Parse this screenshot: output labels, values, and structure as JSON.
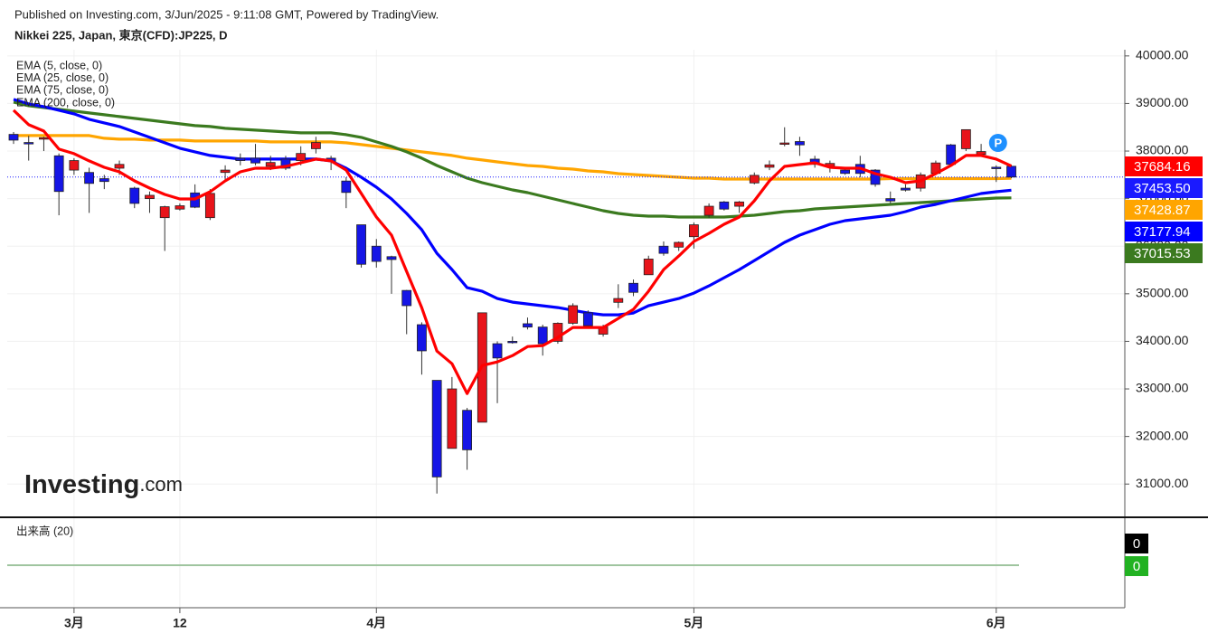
{
  "chart_data": {
    "type": "candlestick",
    "subtitle": "Published on Investing.com, 3/Jun/2025 - 9:11:08 GMT, Powered by TradingView.",
    "title": "Nikkei 225, Japan, 東京(CFD):JP225, D",
    "logo": {
      "main": "Investing",
      "suffix": ".com"
    },
    "marker": "P",
    "categories": [
      null,
      null,
      null,
      null,
      "3月",
      null,
      null,
      null,
      null,
      null,
      null,
      "12",
      null,
      null,
      null,
      null,
      null,
      null,
      null,
      null,
      null,
      null,
      null,
      null,
      "4月",
      null,
      null,
      null,
      null,
      null,
      null,
      null,
      null,
      null,
      null,
      null,
      null,
      null,
      null,
      null,
      null,
      null,
      null,
      null,
      null,
      "5月",
      null,
      null,
      null,
      null,
      null,
      null,
      null,
      null,
      null,
      null,
      null,
      null,
      null,
      null,
      null,
      null,
      null,
      null,
      null,
      "6月",
      null
    ],
    "ylim": [
      30320,
      40130
    ],
    "yticks": [
      {
        "value": 31000,
        "label": "31000.00"
      },
      {
        "value": 32000,
        "label": "32000.00"
      },
      {
        "value": 33000,
        "label": "33000.00"
      },
      {
        "value": 34000,
        "label": "34000.00"
      },
      {
        "value": 35000,
        "label": "35000.00"
      },
      {
        "value": 36000,
        "label": "36000.00"
      },
      {
        "value": 37000,
        "label": "37000.00"
      },
      {
        "value": 38000,
        "label": "38000.00"
      },
      {
        "value": 39000,
        "label": "39000.00"
      },
      {
        "value": 40000,
        "label": "40000.00"
      }
    ],
    "grid": true,
    "series": [
      {
        "type": "candlestick",
        "up_color": "#e8141a",
        "down_color": "#1515e6",
        "color": "#1a1aff",
        "close_label": "37453.50",
        "open": [
          38350,
          38180,
          38250,
          37900,
          37600,
          37550,
          37420,
          37640,
          37220,
          37000,
          36600,
          36780,
          37120,
          36600,
          37550,
          37850,
          37850,
          37680,
          37830,
          37800,
          38050,
          37850,
          37370,
          36450,
          36000,
          35780,
          35070,
          34350,
          33180,
          31750,
          32550,
          32300,
          33950,
          34000,
          34370,
          34300,
          34000,
          34380,
          34600,
          34150,
          34820,
          35220,
          35400,
          36000,
          35980,
          36200,
          36650,
          36930,
          36840,
          37330,
          37660,
          38150,
          38200,
          37830,
          37680,
          37600,
          37720,
          37600,
          37000,
          37220,
          37220,
          37530,
          38130,
          38050,
          37930,
          37660,
          37680
        ],
        "high": [
          38400,
          38320,
          38300,
          37950,
          37850,
          37650,
          37500,
          37800,
          37250,
          37150,
          36850,
          36900,
          37300,
          37200,
          37700,
          37950,
          38150,
          37900,
          37900,
          38100,
          38300,
          37900,
          37450,
          36450,
          36150,
          35800,
          35080,
          34400,
          33180,
          33250,
          32600,
          34600,
          34000,
          34100,
          34500,
          34350,
          34400,
          34800,
          34650,
          34350,
          35200,
          35300,
          35800,
          36100,
          36100,
          36500,
          36900,
          36950,
          36950,
          37550,
          37800,
          38500,
          38300,
          37900,
          37800,
          37650,
          37900,
          37620,
          37150,
          37300,
          37550,
          37800,
          38150,
          38450,
          38150,
          37700,
          37700
        ],
        "low": [
          38150,
          37800,
          38000,
          36650,
          37500,
          36700,
          37200,
          37500,
          36800,
          36700,
          35900,
          36750,
          36800,
          36550,
          37400,
          37700,
          37700,
          37600,
          37600,
          37700,
          37950,
          37600,
          36800,
          35550,
          35550,
          35000,
          34150,
          33300,
          30800,
          31750,
          31300,
          32300,
          32700,
          33950,
          34250,
          33700,
          33950,
          34350,
          34300,
          34100,
          34700,
          34950,
          35400,
          35800,
          35900,
          35950,
          36600,
          36750,
          36700,
          37300,
          37600,
          38100,
          37900,
          37650,
          37550,
          37500,
          37450,
          37250,
          36900,
          37150,
          37150,
          37500,
          37700,
          38000,
          37900,
          37350,
          37430
        ],
        "close": [
          38230,
          38150,
          38280,
          37150,
          37800,
          37320,
          37360,
          37720,
          36900,
          37070,
          36830,
          36850,
          36820,
          37110,
          37600,
          37800,
          37750,
          37760,
          37640,
          37950,
          38180,
          37780,
          37130,
          35620,
          35680,
          35720,
          34750,
          33800,
          31150,
          33000,
          31720,
          34600,
          33650,
          33980,
          34300,
          33950,
          34380,
          34750,
          34330,
          34300,
          34900,
          35030,
          35730,
          35850,
          36080,
          36450,
          36840,
          36780,
          36930,
          37490,
          37710,
          38170,
          38130,
          37720,
          37740,
          37530,
          37530,
          37300,
          36950,
          37180,
          37500,
          37750,
          37720,
          38450,
          37990,
          37630,
          37453.5
        ]
      },
      {
        "type": "line",
        "name": "EMA (5, close, 0)",
        "color": "#ff0000",
        "values": [
          38858,
          38554,
          38421,
          38040,
          37945,
          37793,
          37659,
          37564,
          37374,
          37222,
          37088,
          36993,
          36993,
          37145,
          37374,
          37564,
          37640,
          37640,
          37678,
          37754,
          37831,
          37793,
          37602,
          37107,
          36613,
          36232,
          35471,
          34710,
          33796,
          33530,
          32902,
          33492,
          33568,
          33701,
          33891,
          33910,
          34082,
          34291,
          34291,
          34291,
          34481,
          34672,
          35052,
          35509,
          35794,
          36099,
          36270,
          36460,
          36613,
          36955,
          37374,
          37678,
          37716,
          37754,
          37659,
          37640,
          37640,
          37526,
          37450,
          37336,
          37374,
          37526,
          37697,
          37907,
          37907,
          37831,
          37684.16
        ]
      },
      {
        "type": "line",
        "name": "EMA (25, close, 0)",
        "color": "#0000ff",
        "values": [
          39087,
          38991,
          38934,
          38858,
          38782,
          38668,
          38592,
          38516,
          38401,
          38287,
          38173,
          38059,
          37983,
          37907,
          37869,
          37831,
          37831,
          37831,
          37831,
          37831,
          37831,
          37793,
          37640,
          37450,
          37241,
          36993,
          36689,
          36346,
          35851,
          35509,
          35128,
          35052,
          34900,
          34824,
          34786,
          34748,
          34710,
          34653,
          34595,
          34557,
          34557,
          34595,
          34748,
          34824,
          34900,
          35014,
          35166,
          35338,
          35509,
          35699,
          35890,
          36080,
          36232,
          36346,
          36460,
          36537,
          36575,
          36613,
          36651,
          36727,
          36822,
          36879,
          36955,
          37031,
          37107,
          37145,
          37177.94
        ]
      },
      {
        "type": "line",
        "name": "EMA (75, close, 0)",
        "color": "#3b7a1f",
        "values": [
          39030,
          38953,
          38915,
          38877,
          38839,
          38801,
          38763,
          38725,
          38687,
          38649,
          38611,
          38573,
          38535,
          38516,
          38478,
          38459,
          38440,
          38421,
          38401,
          38382,
          38382,
          38382,
          38344,
          38287,
          38192,
          38097,
          37983,
          37850,
          37697,
          37564,
          37431,
          37336,
          37260,
          37184,
          37126,
          37050,
          36974,
          36898,
          36822,
          36746,
          36689,
          36651,
          36632,
          36632,
          36613,
          36613,
          36613,
          36613,
          36632,
          36651,
          36689,
          36727,
          36746,
          36784,
          36803,
          36822,
          36841,
          36860,
          36879,
          36898,
          36917,
          36936,
          36955,
          36974,
          36993,
          37012,
          37015.53
        ]
      },
      {
        "type": "line",
        "name": "EMA (200, close, 0)",
        "color": "#ffa500",
        "values": [
          38325,
          38325,
          38325,
          38325,
          38325,
          38325,
          38268,
          38249,
          38249,
          38230,
          38230,
          38230,
          38211,
          38211,
          38211,
          38211,
          38211,
          38192,
          38192,
          38192,
          38192,
          38192,
          38173,
          38135,
          38097,
          38059,
          38021,
          37983,
          37945,
          37907,
          37850,
          37812,
          37773,
          37735,
          37697,
          37678,
          37640,
          37621,
          37583,
          37564,
          37526,
          37507,
          37488,
          37469,
          37450,
          37431,
          37431,
          37412,
          37412,
          37412,
          37412,
          37412,
          37412,
          37412,
          37412,
          37412,
          37412,
          37412,
          37420,
          37420,
          37420,
          37420,
          37420,
          37420,
          37420,
          37420,
          37428.87
        ]
      }
    ],
    "volume": {
      "title": "出来高 (20)",
      "tags": [
        {
          "value": 0,
          "color": "#000000"
        },
        {
          "value": 0,
          "color": "#22b222"
        }
      ]
    }
  }
}
